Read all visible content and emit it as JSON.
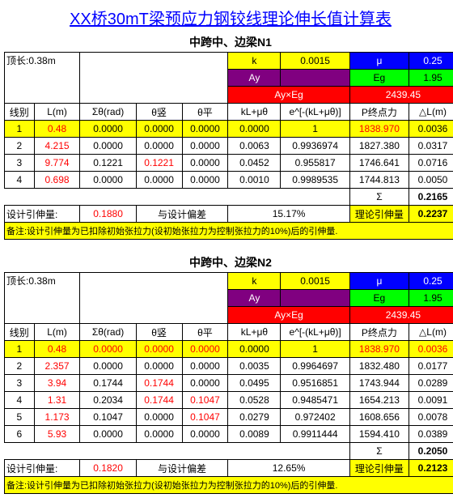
{
  "title": "XX桥30mT梁预应力钢铰线理论伸长值计算表",
  "sections": [
    {
      "subtitle": "中跨中、边梁N1",
      "top_len_label": "顶长:0.38m",
      "params": {
        "k_label": "k",
        "k_val": "0.0015",
        "mu_label": "μ",
        "mu_val": "0.25",
        "Ay_label": "Ay",
        "Ay_val": "",
        "Eg_label": "Eg",
        "Eg_val": "1.95",
        "AyEg_label": "Ay×Eg",
        "AyEg_val": "2439.45"
      },
      "headers": [
        "线别",
        "L(m)",
        "Σθ(rad)",
        "θ竖",
        "θ平",
        "kL+μθ",
        "e^[-(kL+μθ)]",
        "P终点力",
        "△L(m)"
      ],
      "rows": [
        {
          "c": [
            "1",
            "0.48",
            "0.0000",
            "0.0000",
            "0.0000",
            "0.0000",
            "1",
            "1838.970",
            "0.0036"
          ],
          "red": [
            false,
            true,
            false,
            false,
            false,
            false,
            false,
            true,
            false
          ],
          "hl": true
        },
        {
          "c": [
            "2",
            "4.215",
            "0.0000",
            "0.0000",
            "0.0000",
            "0.0063",
            "0.9936974",
            "1827.380",
            "0.0317"
          ],
          "red": [
            false,
            true,
            false,
            false,
            false,
            false,
            false,
            false,
            false
          ],
          "hl": false
        },
        {
          "c": [
            "3",
            "9.774",
            "0.1221",
            "0.1221",
            "0.0000",
            "0.0452",
            "0.955817",
            "1746.641",
            "0.0716"
          ],
          "red": [
            false,
            true,
            false,
            true,
            false,
            false,
            false,
            false,
            false
          ],
          "hl": false
        },
        {
          "c": [
            "4",
            "0.698",
            "0.0000",
            "0.0000",
            "0.0000",
            "0.0010",
            "0.9989535",
            "1744.813",
            "0.0050"
          ],
          "red": [
            false,
            true,
            false,
            false,
            false,
            false,
            false,
            false,
            false
          ],
          "hl": false
        }
      ],
      "sigma": "Σ",
      "sigma_val": "0.2165",
      "design_label": "设计引伸量:",
      "design_val": "0.1880",
      "dev_label": "与设计偏差",
      "dev_val": "15.17%",
      "theo_label": "理论引伸量",
      "theo_val": "0.2237",
      "note": "备注:设计引伸量为已扣除初始张拉力(设初始张拉力为控制张拉力的10%)后的引伸量."
    },
    {
      "subtitle": "中跨中、边梁N2",
      "top_len_label": "顶长:0.38m",
      "params": {
        "k_label": "k",
        "k_val": "0.0015",
        "mu_label": "μ",
        "mu_val": "0.25",
        "Ay_label": "Ay",
        "Ay_val": "",
        "Eg_label": "Eg",
        "Eg_val": "1.95",
        "AyEg_label": "Ay×Eg",
        "AyEg_val": "2439.45"
      },
      "headers": [
        "线别",
        "L(m)",
        "Σθ(rad)",
        "θ竖",
        "θ平",
        "kL+μθ",
        "e^[-(kL+μθ)]",
        "P终点力",
        "△L(m)"
      ],
      "rows": [
        {
          "c": [
            "1",
            "0.48",
            "0.0000",
            "0.0000",
            "0.0000",
            "0.0000",
            "1",
            "1838.970",
            "0.0036"
          ],
          "red": [
            false,
            true,
            true,
            true,
            true,
            false,
            false,
            true,
            true
          ],
          "hl": true
        },
        {
          "c": [
            "2",
            "2.357",
            "0.0000",
            "0.0000",
            "0.0000",
            "0.0035",
            "0.9964697",
            "1832.480",
            "0.0177"
          ],
          "red": [
            false,
            true,
            false,
            false,
            false,
            false,
            false,
            false,
            false
          ],
          "hl": false
        },
        {
          "c": [
            "3",
            "3.94",
            "0.1744",
            "0.1744",
            "0.0000",
            "0.0495",
            "0.9516851",
            "1743.944",
            "0.0289"
          ],
          "red": [
            false,
            true,
            false,
            true,
            false,
            false,
            false,
            false,
            false
          ],
          "hl": false
        },
        {
          "c": [
            "4",
            "1.31",
            "0.2034",
            "0.1744",
            "0.1047",
            "0.0528",
            "0.9485471",
            "1654.213",
            "0.0091"
          ],
          "red": [
            false,
            true,
            false,
            true,
            true,
            false,
            false,
            false,
            false
          ],
          "hl": false
        },
        {
          "c": [
            "5",
            "1.173",
            "0.1047",
            "0.0000",
            "0.1047",
            "0.0279",
            "0.972402",
            "1608.656",
            "0.0078"
          ],
          "red": [
            false,
            true,
            false,
            false,
            true,
            false,
            false,
            false,
            false
          ],
          "hl": false
        },
        {
          "c": [
            "6",
            "5.93",
            "0.0000",
            "0.0000",
            "0.0000",
            "0.0089",
            "0.9911444",
            "1594.410",
            "0.0389"
          ],
          "red": [
            false,
            true,
            false,
            false,
            false,
            false,
            false,
            false,
            false
          ],
          "hl": false
        }
      ],
      "sigma": "Σ",
      "sigma_val": "0.2050",
      "design_label": "设计引伸量:",
      "design_val": "0.1820",
      "dev_label": "与设计偏差",
      "dev_val": "12.65%",
      "theo_label": "理论引伸量",
      "theo_val": "0.2123",
      "note": "备注:设计引伸量为已扣除初始张拉力(设初始张拉力为控制张拉力的10%)后的引伸量."
    }
  ]
}
